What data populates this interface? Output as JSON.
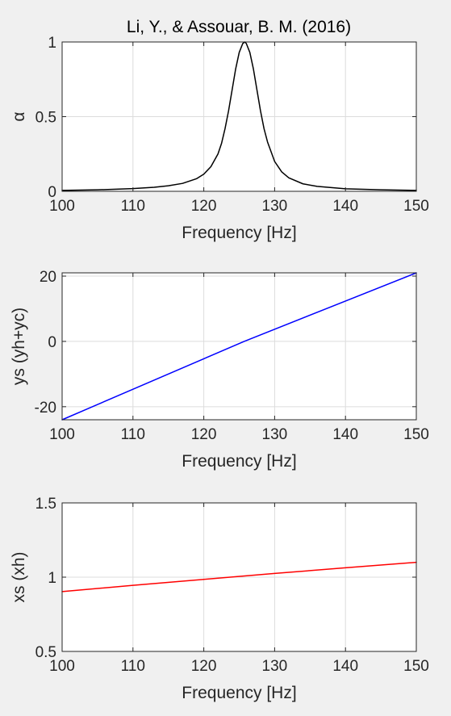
{
  "figure": {
    "title": "Li, Y., & Assouar, B. M. (2016)",
    "background": "#f0f0f0",
    "axes_background": "#ffffff",
    "grid_color": "#dcdcdc",
    "axis_color": "#262626"
  },
  "chart_data": [
    {
      "type": "line",
      "title": "Li, Y., & Assouar, B. M. (2016)",
      "xlabel": "Frequency [Hz]",
      "ylabel": "α",
      "xlim": [
        100,
        150
      ],
      "ylim": [
        0,
        1
      ],
      "xticks": [
        100,
        110,
        120,
        130,
        140,
        150
      ],
      "yticks": [
        0,
        0.5,
        1
      ],
      "xtick_labels": [
        "100",
        "110",
        "120",
        "130",
        "140",
        "150"
      ],
      "ytick_labels": [
        "0",
        "0.5",
        "1"
      ],
      "grid": true,
      "series": [
        {
          "color": "#000000",
          "x": [
            100,
            105,
            110,
            113,
            115,
            117,
            119,
            120,
            121,
            122,
            122.5,
            123,
            123.5,
            124,
            124.5,
            125,
            125.5,
            125.8,
            126,
            126.5,
            127,
            127.5,
            128,
            128.5,
            129,
            130,
            131,
            132,
            134,
            136,
            140,
            145,
            150
          ],
          "y": [
            0.006,
            0.01,
            0.018,
            0.027,
            0.037,
            0.053,
            0.085,
            0.115,
            0.165,
            0.25,
            0.32,
            0.42,
            0.54,
            0.68,
            0.82,
            0.93,
            0.99,
            1.0,
            0.99,
            0.93,
            0.82,
            0.68,
            0.54,
            0.42,
            0.33,
            0.2,
            0.13,
            0.09,
            0.05,
            0.033,
            0.017,
            0.01,
            0.006
          ]
        }
      ]
    },
    {
      "type": "line",
      "xlabel": "Frequency [Hz]",
      "ylabel": "ys (yh+yc)",
      "xlim": [
        100,
        150
      ],
      "ylim": [
        -24,
        21
      ],
      "xticks": [
        100,
        110,
        120,
        130,
        140,
        150
      ],
      "yticks": [
        -20,
        0,
        20
      ],
      "xtick_labels": [
        "100",
        "110",
        "120",
        "130",
        "140",
        "150"
      ],
      "ytick_labels": [
        "-20",
        "0",
        "20"
      ],
      "grid": true,
      "series": [
        {
          "color": "#0000ff",
          "x": [
            100,
            125.7,
            150
          ],
          "y": [
            -24,
            0,
            21
          ]
        }
      ]
    },
    {
      "type": "line",
      "xlabel": "Frequency [Hz]",
      "ylabel": "xs (xh)",
      "xlim": [
        100,
        150
      ],
      "ylim": [
        0.5,
        1.5
      ],
      "xticks": [
        100,
        110,
        120,
        130,
        140,
        150
      ],
      "yticks": [
        0.5,
        1,
        1.5
      ],
      "xtick_labels": [
        "100",
        "110",
        "120",
        "130",
        "140",
        "150"
      ],
      "ytick_labels": [
        "0.5",
        "1",
        "1.5"
      ],
      "grid": true,
      "series": [
        {
          "color": "#ff0000",
          "x": [
            100,
            110,
            120,
            130,
            140,
            150
          ],
          "y": [
            0.903,
            0.945,
            0.985,
            1.025,
            1.063,
            1.1
          ]
        }
      ]
    }
  ]
}
